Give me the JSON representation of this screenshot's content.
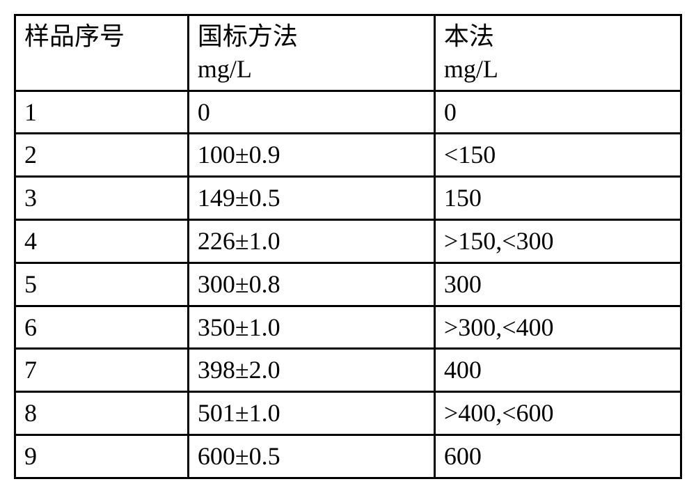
{
  "table": {
    "background_color": "#ffffff",
    "border_color": "#000000",
    "border_width": 3,
    "font_size": 36,
    "text_color": "#000000",
    "columns": [
      {
        "header_line1": "样品序号",
        "header_line2": "",
        "width": "26%"
      },
      {
        "header_line1": "国标方法",
        "header_line2": "mg/L",
        "width": "37%"
      },
      {
        "header_line1": "本法",
        "header_line2": "mg/L",
        "width": "37%"
      }
    ],
    "rows": [
      {
        "c0": "1",
        "c1": "0",
        "c2": "0"
      },
      {
        "c0": "2",
        "c1": "100±0.9",
        "c2": "<150"
      },
      {
        "c0": "3",
        "c1": "149±0.5",
        "c2": "150"
      },
      {
        "c0": "4",
        "c1": "226±1.0",
        "c2": ">150,<300"
      },
      {
        "c0": "5",
        "c1": "300±0.8",
        "c2": "300"
      },
      {
        "c0": "6",
        "c1": "350±1.0",
        "c2": ">300,<400"
      },
      {
        "c0": "7",
        "c1": "398±2.0",
        "c2": "400"
      },
      {
        "c0": "8",
        "c1": "501±1.0",
        "c2": ">400,<600"
      },
      {
        "c0": "9",
        "c1": "600±0.5",
        "c2": "600"
      }
    ]
  }
}
